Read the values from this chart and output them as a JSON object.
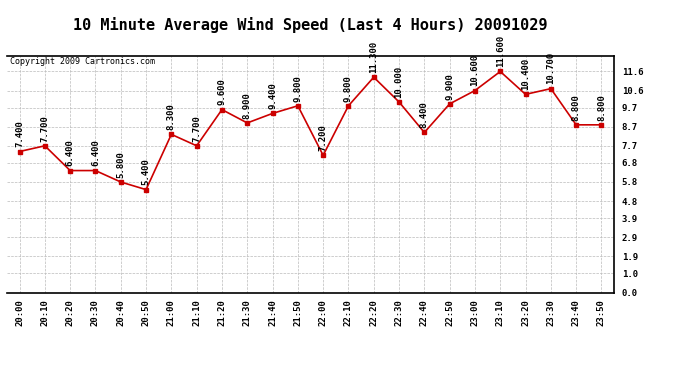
{
  "title": "10 Minute Average Wind Speed (Last 4 Hours) 20091029",
  "copyright": "Copyright 2009 Cartronics.com",
  "times": [
    "20:00",
    "20:10",
    "20:20",
    "20:30",
    "20:40",
    "20:50",
    "21:00",
    "21:10",
    "21:20",
    "21:30",
    "21:40",
    "21:50",
    "22:00",
    "22:10",
    "22:20",
    "22:30",
    "22:40",
    "22:50",
    "23:00",
    "23:10",
    "23:20",
    "23:30",
    "23:40",
    "23:50"
  ],
  "values": [
    7.4,
    7.7,
    6.4,
    6.4,
    5.8,
    5.4,
    8.3,
    7.7,
    9.6,
    8.9,
    9.4,
    9.8,
    7.2,
    9.8,
    11.3,
    10.0,
    8.4,
    9.9,
    10.6,
    11.6,
    10.4,
    10.7,
    8.8,
    8.8
  ],
  "labels": [
    "7.400",
    "7.700",
    "6.400",
    "6.400",
    "5.800",
    "5.400",
    "8.300",
    "7.700",
    "9.600",
    "8.900",
    "9.400",
    "9.800",
    "7.200",
    "9.800",
    "11.300",
    "10.000",
    "8.400",
    "9.900",
    "10.600",
    "11.600",
    "10.400",
    "10.700",
    "8.800",
    "8.800"
  ],
  "line_color": "#cc0000",
  "marker_color": "#cc0000",
  "background_color": "#ffffff",
  "grid_color": "#bbbbbb",
  "yticks": [
    0.0,
    1.0,
    1.9,
    2.9,
    3.9,
    4.8,
    5.8,
    6.8,
    7.7,
    8.7,
    9.7,
    10.6,
    11.6
  ],
  "ylim": [
    0.0,
    12.4
  ],
  "title_fontsize": 11,
  "label_fontsize": 6.5,
  "annotation_fontsize": 6.5,
  "copyright_fontsize": 6
}
